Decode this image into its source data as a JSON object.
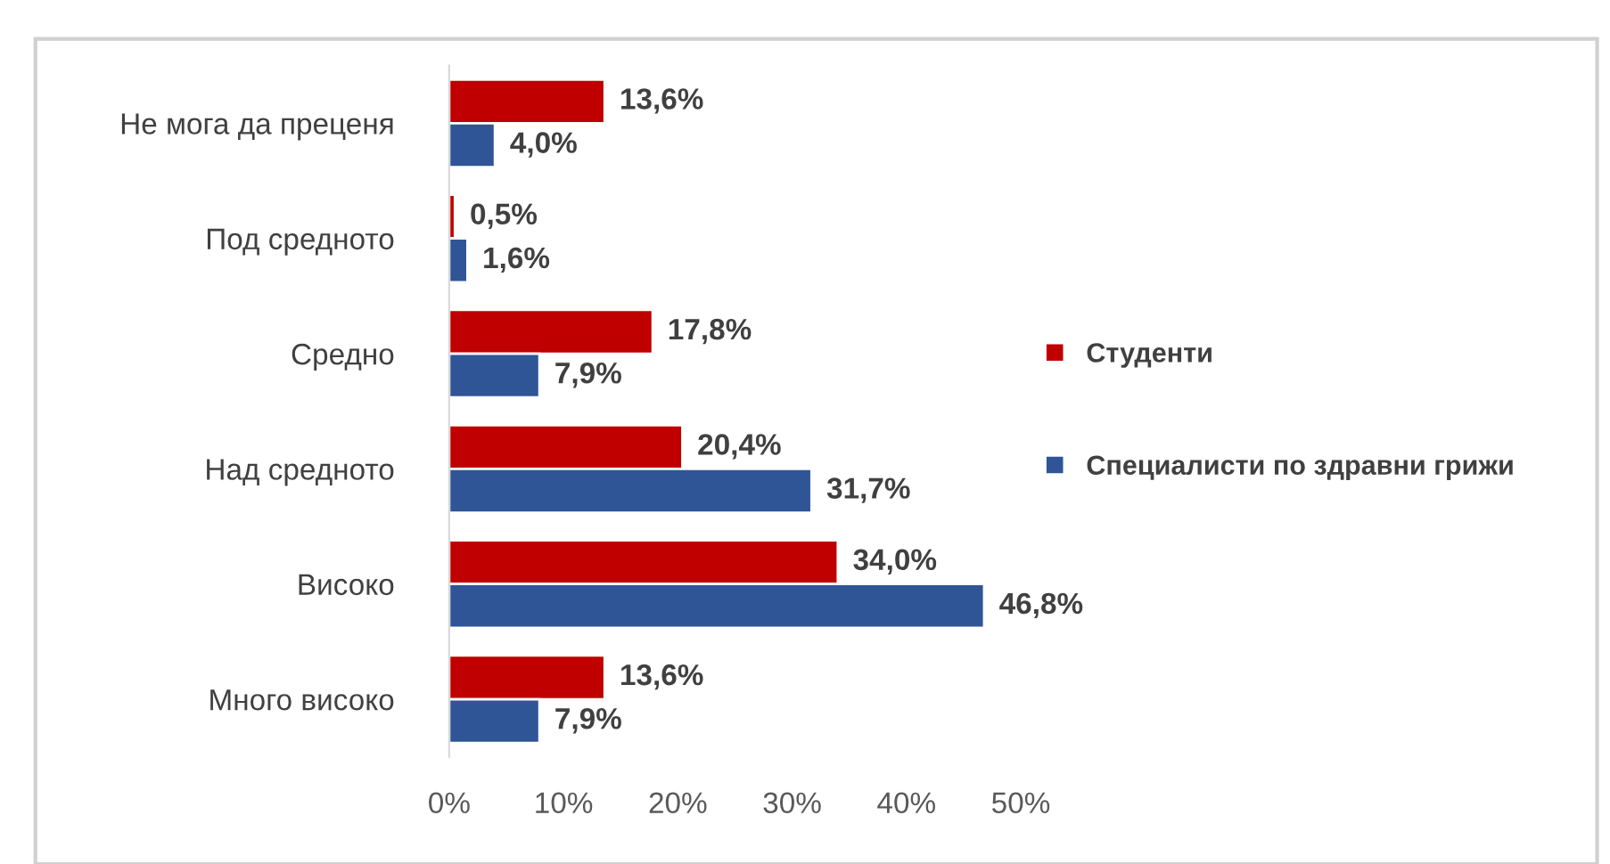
{
  "chart_data": {
    "type": "bar",
    "orientation": "horizontal",
    "categories": [
      "Не мога да преценя",
      "Под средното",
      "Средно",
      "Над средното",
      "Високо",
      "Много високо"
    ],
    "series": [
      {
        "name": "Студенти",
        "color": "#c00000",
        "values": [
          13.6,
          0.5,
          17.8,
          20.4,
          34.0,
          13.6
        ],
        "value_labels": [
          "13,6%",
          "0,5%",
          "17,8%",
          "20,4%",
          "34,0%",
          "13,6%"
        ]
      },
      {
        "name": "Специалисти по здравни грижи",
        "color": "#2f5597",
        "values": [
          4.0,
          1.6,
          7.9,
          31.7,
          46.8,
          7.9
        ],
        "value_labels": [
          "4,0%",
          "1,6%",
          "7,9%",
          "31,7%",
          "46,8%",
          "7,9%"
        ]
      }
    ],
    "xlim": [
      0,
      50
    ],
    "xticks": [
      {
        "value": 0,
        "label": "0%"
      },
      {
        "value": 10,
        "label": "10%"
      },
      {
        "value": 20,
        "label": "20%"
      },
      {
        "value": 30,
        "label": "30%"
      },
      {
        "value": 40,
        "label": "40%"
      },
      {
        "value": 50,
        "label": "50%"
      }
    ],
    "grid": false,
    "legend": "right"
  }
}
